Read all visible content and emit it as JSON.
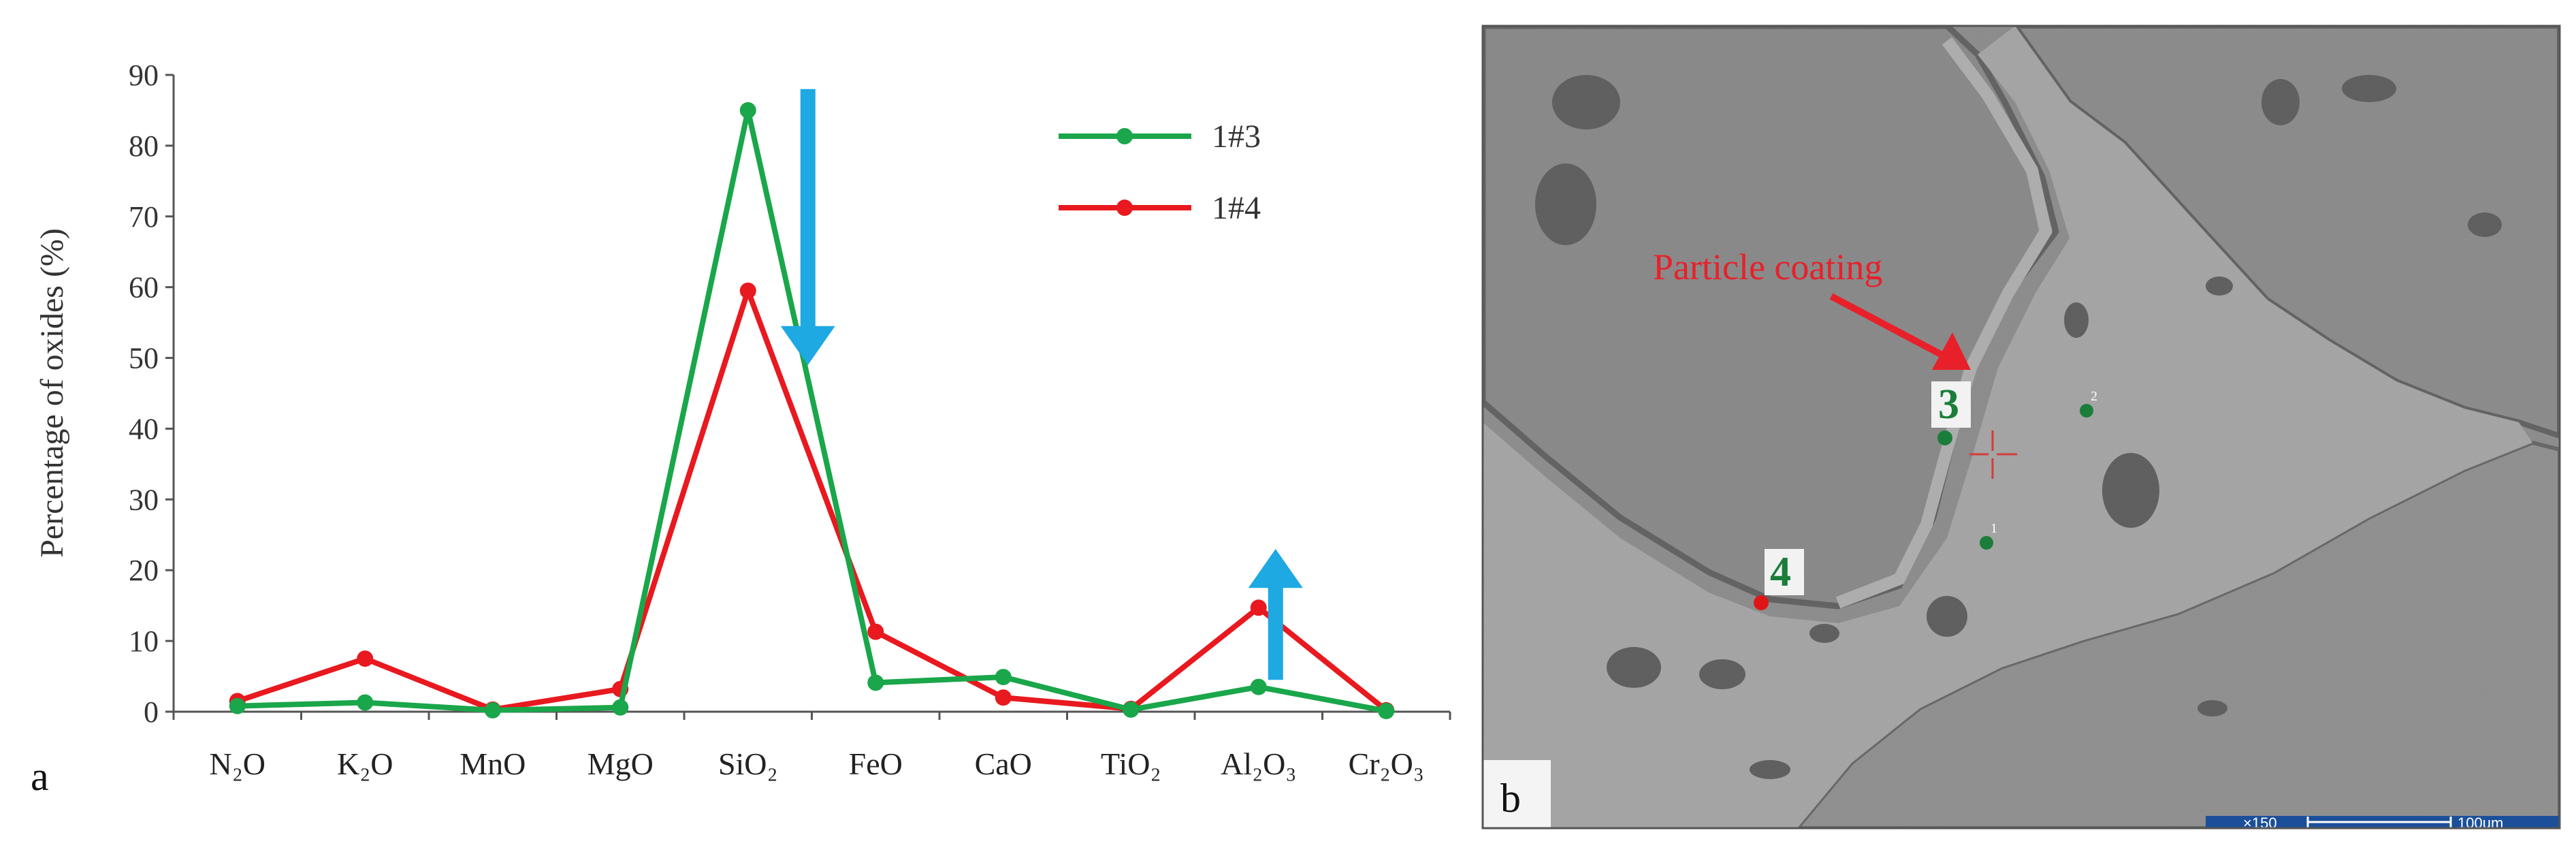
{
  "figure": {
    "panel_a_label": "a",
    "panel_b_label": "b"
  },
  "chart_data": {
    "type": "line",
    "categories": [
      "N₂O",
      "K₂O",
      "MnO",
      "MgO",
      "SiO₂",
      "FeO",
      "CaO",
      "TiO₂",
      "Al₂O₃",
      "Cr₂O₃"
    ],
    "ylabel": "Percentage of oxides (%)",
    "xlabel": "",
    "ylim": [
      0,
      90
    ],
    "yticks": [
      0,
      10,
      20,
      30,
      40,
      50,
      60,
      70,
      80,
      90
    ],
    "grid": false,
    "legend_position": "top-right",
    "series": [
      {
        "name": "1#3",
        "color": "#1aa64a",
        "values": [
          0.8,
          1.3,
          0.2,
          0.6,
          85,
          4.1,
          4.9,
          0.3,
          3.5,
          0.1
        ]
      },
      {
        "name": "1#4",
        "color": "#e8191f",
        "values": [
          1.5,
          7.5,
          0.3,
          3.2,
          59.5,
          11.3,
          2.0,
          0.4,
          14.7,
          0.2
        ]
      }
    ],
    "annotations": [
      {
        "kind": "arrow-down",
        "at_category": "SiO₂",
        "color": "#1ea9e3"
      },
      {
        "kind": "arrow-up",
        "at_category": "Al₂O₃",
        "color": "#1ea9e3"
      }
    ]
  },
  "micrograph": {
    "callout_text": "Particle coating",
    "point_labels": [
      "3",
      "4"
    ],
    "small_marks": [
      "1",
      "2"
    ],
    "scale_mag": "×150",
    "scale_length": "100um"
  }
}
